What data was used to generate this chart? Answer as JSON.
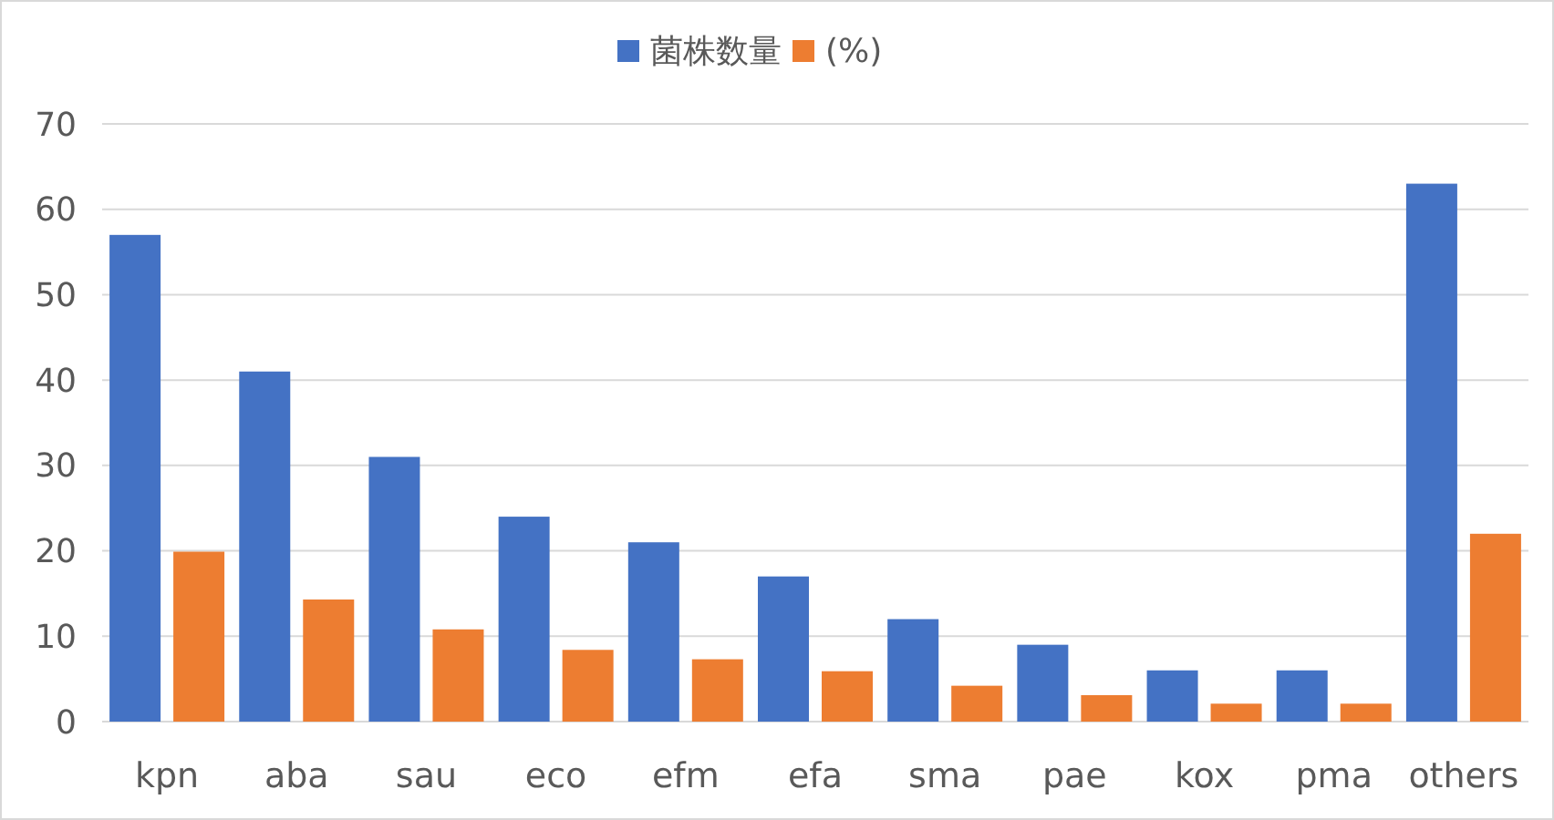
{
  "chart_data": {
    "type": "bar",
    "categories": [
      "kpn",
      "aba",
      "sau",
      "eco",
      "efm",
      "efa",
      "sma",
      "pae",
      "kox",
      "pma",
      "others"
    ],
    "series": [
      {
        "name": "菌株数量",
        "color": "#4472c4",
        "values": [
          57,
          41,
          31,
          24,
          21,
          17,
          12,
          9,
          6,
          6,
          63
        ]
      },
      {
        "name": "(%)",
        "color": "#ed7d31",
        "values": [
          19.9,
          14.3,
          10.8,
          8.4,
          7.3,
          5.9,
          4.2,
          3.1,
          2.1,
          2.1,
          22.0
        ]
      }
    ],
    "ylim": [
      0,
      70
    ],
    "yticks": [
      0,
      10,
      20,
      30,
      40,
      50,
      60,
      70
    ],
    "grid": "y",
    "legend": "top"
  }
}
